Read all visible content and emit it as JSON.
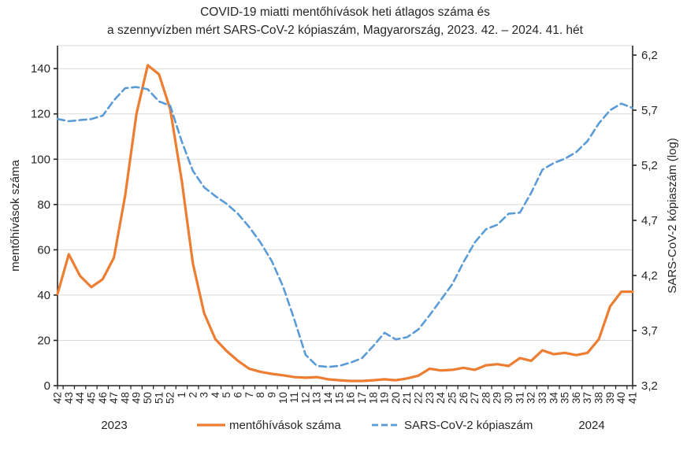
{
  "chart_data": {
    "type": "line",
    "title_line1": "COVID-19 miatti mentőhívások heti átlagos száma és",
    "title_line2": "a szennyvízben mért SARS-CoV-2 kópiaszám, Magyarország, 2023. 42. – 2024. 41. hét",
    "categories": [
      "42",
      "43",
      "44",
      "45",
      "46",
      "47",
      "48",
      "49",
      "50",
      "51",
      "52",
      "1",
      "2",
      "3",
      "4",
      "5",
      "6",
      "7",
      "8",
      "9",
      "10",
      "11",
      "12",
      "13",
      "14",
      "15",
      "16",
      "17",
      "18",
      "19",
      "20",
      "21",
      "22",
      "23",
      "24",
      "25",
      "26",
      "27",
      "28",
      "29",
      "30",
      "31",
      "32",
      "33",
      "34",
      "35",
      "36",
      "37",
      "38",
      "39",
      "40",
      "41"
    ],
    "left_axis": {
      "title": "mentőhívások száma",
      "min": 0,
      "max": 140,
      "step": 20,
      "tick_labels": [
        "0",
        "20",
        "40",
        "60",
        "80",
        "100",
        "120",
        "140"
      ]
    },
    "right_axis": {
      "title": "SARS-CoV-2 kópiaszám (log)",
      "min": 3.2,
      "max": 6.2,
      "step": 0.5,
      "tick_labels": [
        "3,2",
        "3,7",
        "4,2",
        "4,7",
        "5,2",
        "5,7",
        "6,2"
      ]
    },
    "series": [
      {
        "name": "mentőhívások száma",
        "axis": "left",
        "color": "#ED7D31",
        "style": "solid",
        "values": [
          40.5,
          58,
          48.5,
          43.5,
          47,
          56.5,
          84,
          120,
          141.5,
          137.5,
          122,
          91,
          54,
          32,
          20.5,
          15.3,
          11,
          7.5,
          6.1,
          5.2,
          4.6,
          3.8,
          3.5,
          3.8,
          2.8,
          2.4,
          2.1,
          2.1,
          2.4,
          2.8,
          2.4,
          3.2,
          4.4,
          7.5,
          6.7,
          7.0,
          7.9,
          7.0,
          9.0,
          9.5,
          8.7,
          12.2,
          11.0,
          15.6,
          13.9,
          14.5,
          13.5,
          14.5,
          20.5,
          35,
          41.5,
          41.5
        ]
      },
      {
        "name": "SARS-CoV-2 kópiaszám",
        "axis": "right",
        "color": "#5B9BD5",
        "style": "dashed",
        "values": [
          5.62,
          5.6,
          5.61,
          5.62,
          5.65,
          5.79,
          5.9,
          5.91,
          5.89,
          5.78,
          5.74,
          5.42,
          5.15,
          5.0,
          4.92,
          4.85,
          4.76,
          4.64,
          4.5,
          4.33,
          4.1,
          3.8,
          3.48,
          3.38,
          3.37,
          3.38,
          3.41,
          3.45,
          3.56,
          3.68,
          3.62,
          3.64,
          3.71,
          3.84,
          3.98,
          4.12,
          4.32,
          4.5,
          4.62,
          4.66,
          4.76,
          4.77,
          4.95,
          5.16,
          5.22,
          5.26,
          5.32,
          5.42,
          5.58,
          5.7,
          5.76,
          5.72
        ]
      }
    ],
    "year_labels": {
      "left": "2023",
      "right": "2024"
    },
    "grid": true,
    "legend_position": "bottom",
    "colors": {
      "gridline": "#D9D9D9",
      "axis_line": "#262626",
      "text": "#262626",
      "background": "#FFFFFF"
    }
  }
}
